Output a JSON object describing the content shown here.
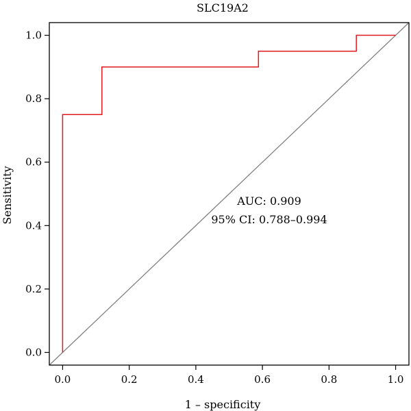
{
  "chart_data": {
    "type": "line",
    "title": "SLC19A2",
    "xlabel": "1 – specificity",
    "ylabel": "Sensitivity",
    "xlim": [
      -0.04,
      1.04
    ],
    "ylim": [
      -0.04,
      1.04
    ],
    "xticks": [
      0.0,
      0.2,
      0.4,
      0.6,
      0.8,
      1.0
    ],
    "yticks": [
      0.0,
      0.2,
      0.4,
      0.6,
      0.8,
      1.0
    ],
    "xtick_labels": [
      "0.0",
      "0.2",
      "0.4",
      "0.6",
      "0.8",
      "1.0"
    ],
    "ytick_labels": [
      "0.0",
      "0.2",
      "0.4",
      "0.6",
      "0.8",
      "1.0"
    ],
    "grid": false,
    "series": [
      {
        "color": "#e31a1c",
        "step": true,
        "x": [
          0.0,
          0.0,
          0.118,
          0.118,
          0.588,
          0.588,
          0.882,
          0.882,
          1.0
        ],
        "y": [
          0.0,
          0.75,
          0.75,
          0.9,
          0.9,
          0.95,
          0.95,
          1.0,
          1.0
        ]
      }
    ],
    "reference_line": {
      "x": [
        -0.04,
        1.04
      ],
      "y": [
        -0.04,
        1.04
      ],
      "color": "#808080"
    },
    "annotations": {
      "auc": "AUC: 0.909",
      "ci": "95% CI: 0.788–0.994",
      "color": "#e31a1c"
    }
  }
}
